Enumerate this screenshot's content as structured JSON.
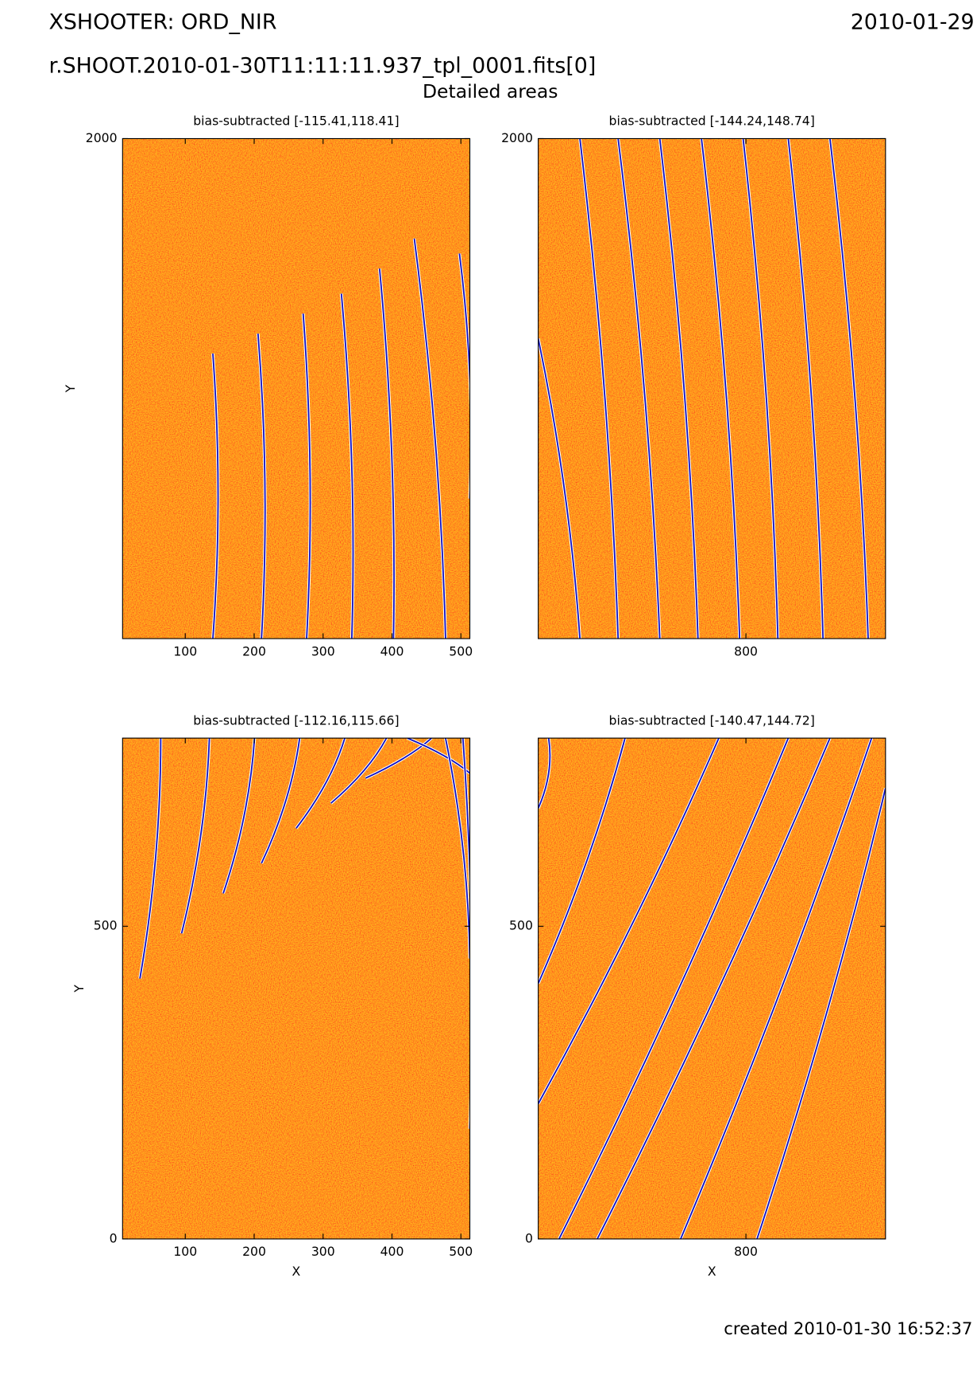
{
  "header": {
    "title": "XSHOOTER: ORD_NIR",
    "date": "2010-01-29",
    "file": "r.SHOOT.2010-01-30T11:11:11.937_tpl_0001.fits[0]",
    "subtitle": "Detailed areas"
  },
  "footer": "created 2010-01-30 16:52:37",
  "chart_data": [
    {
      "type": "image",
      "title": "bias-subtracted [-115.41,118.41]",
      "ylabel": "Y",
      "xlim": [
        9,
        513
      ],
      "ylim": [
        1200,
        2000
      ],
      "xticks": [
        100,
        200,
        300,
        400,
        500
      ],
      "yticks": [
        2000
      ]
    },
    {
      "type": "image",
      "title": "bias-subtracted [-144.24,148.74]",
      "xlim": [
        498,
        1003
      ],
      "ylim": [
        1200,
        2000
      ],
      "xticks": [
        800
      ],
      "yticks": [
        2000
      ]
    },
    {
      "type": "image",
      "title": "bias-subtracted [-112.16,115.66]",
      "xlabel": "X",
      "ylabel": "Y",
      "xlim": [
        9,
        513
      ],
      "ylim": [
        0,
        801
      ],
      "xticks": [
        100,
        200,
        300,
        400,
        500
      ],
      "yticks": [
        0,
        500
      ]
    },
    {
      "type": "image",
      "title": "bias-subtracted [-140.47,144.72]",
      "xlabel": "X",
      "xlim": [
        498,
        1003
      ],
      "ylim": [
        0,
        801
      ],
      "xticks": [
        800
      ],
      "yticks": [
        0,
        500
      ]
    }
  ]
}
